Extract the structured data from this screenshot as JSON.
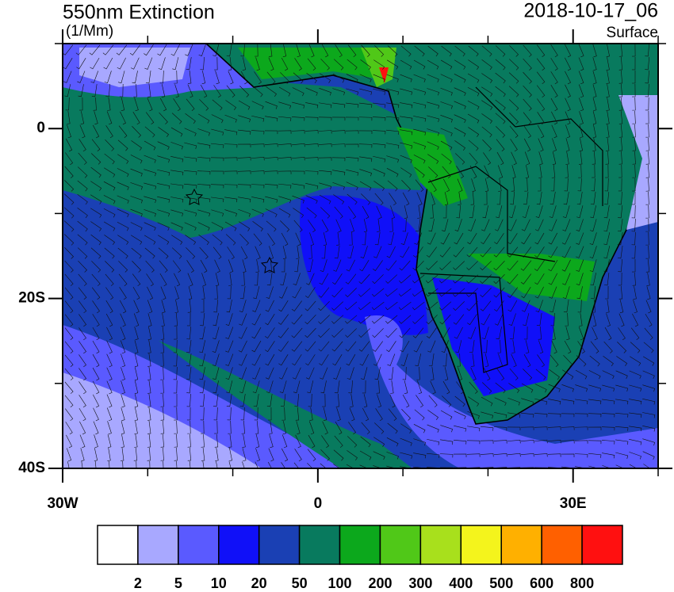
{
  "header": {
    "title": "550nm Extinction",
    "units": "(1/Mm)",
    "time": "2018-10-17_06",
    "level": "Surface"
  },
  "map": {
    "xlim": [
      -30,
      40
    ],
    "ylim": [
      -40,
      10
    ],
    "xticks": [
      {
        "value": -30,
        "label": "30W"
      },
      0,
      {
        "value": 30,
        "label": "30E"
      }
    ],
    "yticks": [
      0,
      {
        "value": -20,
        "label": "20S"
      },
      {
        "value": -40,
        "label": "40S"
      }
    ],
    "minor_xticks": [
      -20,
      -10,
      10,
      20,
      40
    ],
    "minor_yticks": [
      10,
      -10,
      -30
    ]
  },
  "colorbar": {
    "levels": [
      2,
      5,
      10,
      20,
      50,
      100,
      200,
      300,
      400,
      500,
      600,
      800
    ],
    "colors": [
      "#ffffff",
      "#a8a8ff",
      "#5a5aff",
      "#1010f8",
      "#1a40b4",
      "#087a5e",
      "#0ca81c",
      "#50c818",
      "#a8e01c",
      "#f4f41c",
      "#ffb000",
      "#ff6000",
      "#ff1010"
    ]
  }
}
